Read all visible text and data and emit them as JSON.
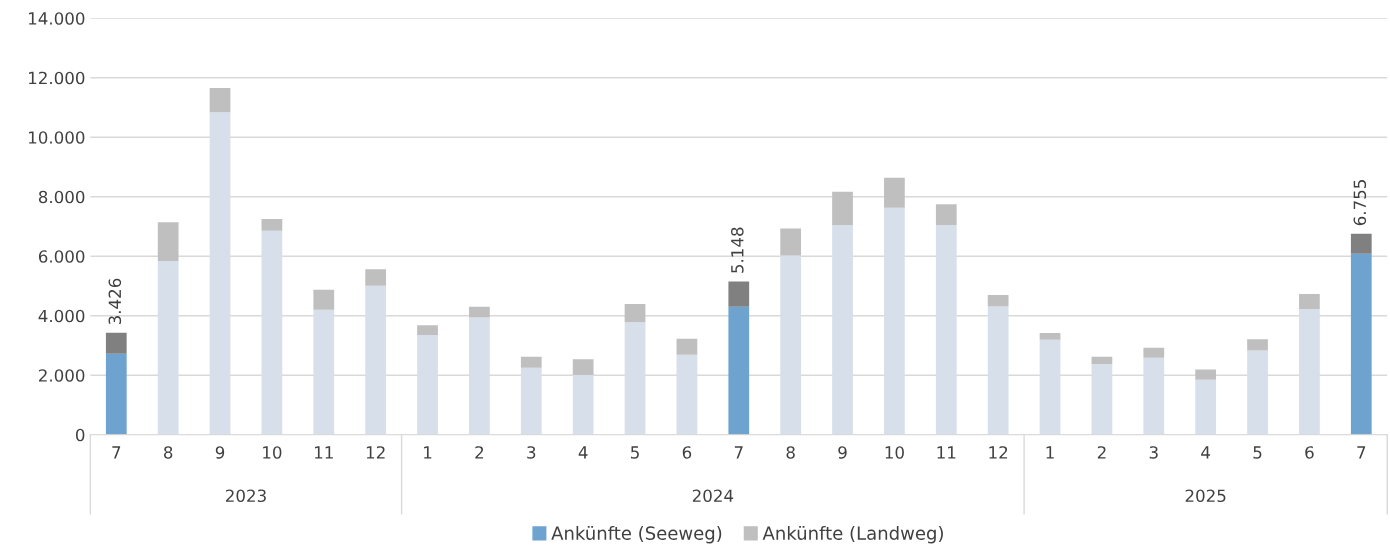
{
  "chart_data": {
    "type": "bar",
    "stacked": true,
    "categories": [
      "7",
      "8",
      "9",
      "10",
      "11",
      "12",
      "1",
      "2",
      "3",
      "4",
      "5",
      "6",
      "7",
      "8",
      "9",
      "10",
      "11",
      "12",
      "1",
      "2",
      "3",
      "4",
      "5",
      "6",
      "7"
    ],
    "series": [
      {
        "name": "Ankünfte (Seeweg)",
        "color": "#6fa3cf",
        "colors": [
          "#6fa3cf",
          "#d6dfea",
          "#d6dfea",
          "#d6dfea",
          "#d6dfea",
          "#d6dfea",
          "#d6dfea",
          "#d6dfea",
          "#d6dfea",
          "#d6dfea",
          "#d6dfea",
          "#d6dfea",
          "#6fa3cf",
          "#d6dfea",
          "#d6dfea",
          "#d6dfea",
          "#d6dfea",
          "#d6dfea",
          "#d6dfea",
          "#d6dfea",
          "#d6dfea",
          "#d6dfea",
          "#d6dfea",
          "#d6dfea",
          "#6fa3cf"
        ],
        "values": [
          2720,
          5840,
          10840,
          6860,
          4200,
          5010,
          3350,
          3940,
          2250,
          2010,
          3780,
          2690,
          4300,
          6020,
          7050,
          7630,
          7050,
          4310,
          3190,
          2380,
          2590,
          1850,
          2830,
          4230,
          6080
        ]
      },
      {
        "name": "Ankünfte (Landweg)",
        "color": "#bfbfbf",
        "colors": [
          "#808080",
          "#bfbfbf",
          "#bfbfbf",
          "#bfbfbf",
          "#bfbfbf",
          "#bfbfbf",
          "#bfbfbf",
          "#bfbfbf",
          "#bfbfbf",
          "#bfbfbf",
          "#bfbfbf",
          "#bfbfbf",
          "#808080",
          "#bfbfbf",
          "#bfbfbf",
          "#bfbfbf",
          "#bfbfbf",
          "#bfbfbf",
          "#bfbfbf",
          "#bfbfbf",
          "#bfbfbf",
          "#bfbfbf",
          "#bfbfbf",
          "#bfbfbf",
          "#808080"
        ],
        "values": [
          706,
          1300,
          810,
          390,
          670,
          550,
          330,
          360,
          370,
          530,
          610,
          540,
          848,
          910,
          1120,
          1010,
          700,
          390,
          230,
          240,
          330,
          340,
          380,
          500,
          675
        ]
      }
    ],
    "totals": [
      "3.426",
      null,
      null,
      null,
      null,
      null,
      null,
      null,
      null,
      null,
      null,
      null,
      "5.148",
      null,
      null,
      null,
      null,
      null,
      null,
      null,
      null,
      null,
      null,
      null,
      "6.755"
    ],
    "annotations": [
      "2023",
      "2024",
      "2025"
    ],
    "ylim": [
      0,
      14000
    ],
    "yticks": [
      0,
      {
        "value": 2000,
        "label": "2.000"
      },
      {
        "value": 4000,
        "label": "4.000"
      },
      {
        "value": 6000,
        "label": "6.000"
      },
      {
        "value": 8000,
        "label": "8.000"
      },
      {
        "value": 10000,
        "label": "10.000"
      },
      {
        "value": 12000,
        "label": "12.000"
      },
      {
        "value": 14000,
        "label": "14.000"
      }
    ],
    "grid": "y",
    "legend": "bottom"
  }
}
